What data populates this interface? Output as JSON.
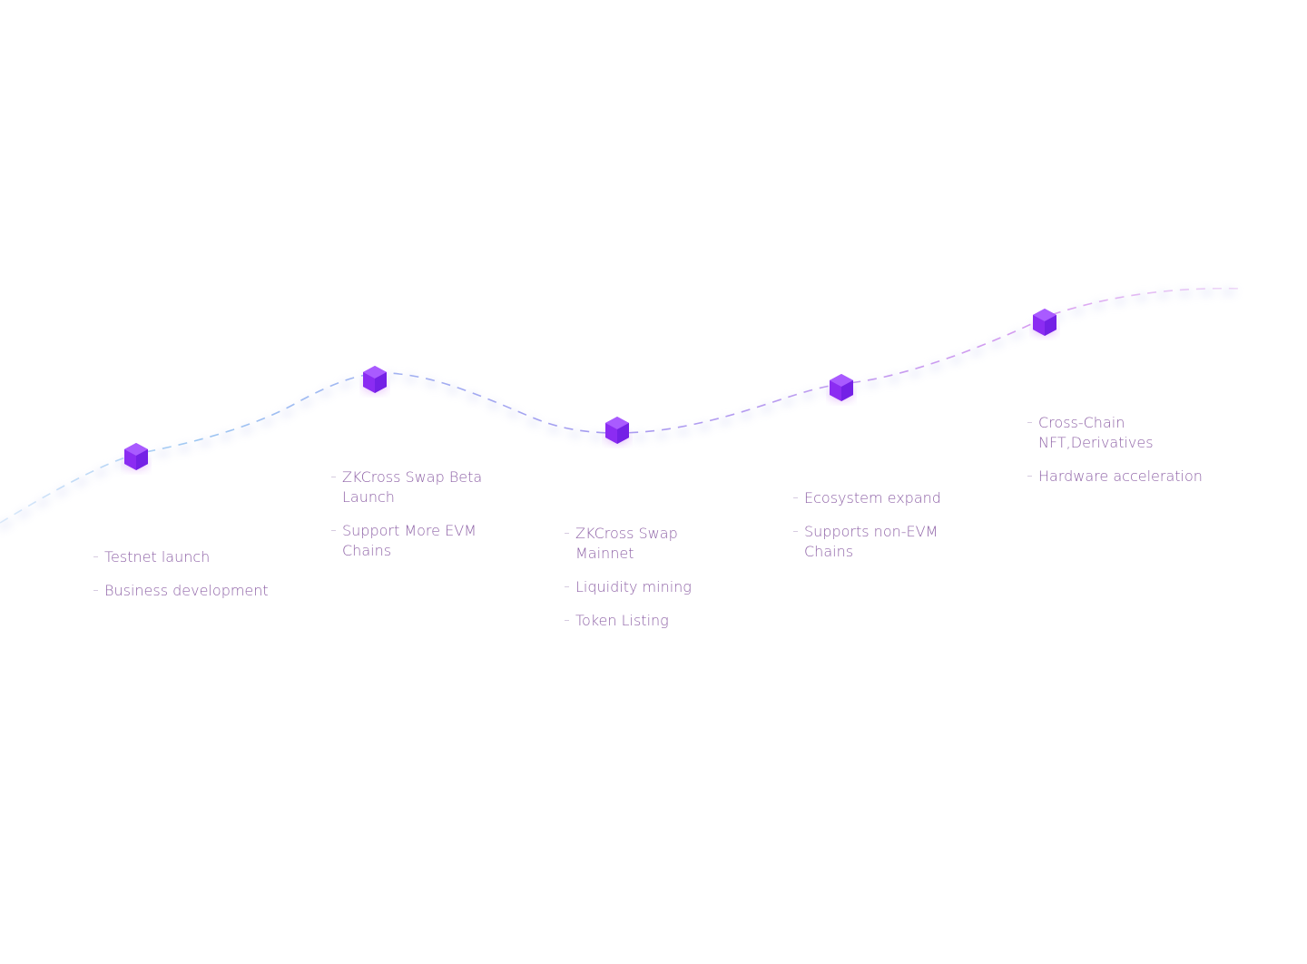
{
  "milestones": [
    {
      "items": [
        "Testnet launch",
        "Business development"
      ]
    },
    {
      "items": [
        "ZKCross Swap Beta Launch",
        "Support More EVM Chains"
      ]
    },
    {
      "items": [
        "ZKCross Swap Mainnet",
        "Liquidity mining",
        "Token Listing"
      ]
    },
    {
      "items": [
        "Ecosystem expand",
        "Supports non-EVM Chains"
      ]
    },
    {
      "items": [
        "Cross-Chain NFT,Derivatives",
        "Hardware acceleration"
      ]
    }
  ],
  "colors": {
    "path_start": "#9ec7f2",
    "path_mid": "#a49cf0",
    "path_end": "#d79cf0",
    "node_top": "#a349ff",
    "node_left": "#8b2cf2",
    "node_right": "#6d1fe0",
    "text": "#8f63a7"
  },
  "icons": {
    "node": "hexagon-cube-icon"
  }
}
